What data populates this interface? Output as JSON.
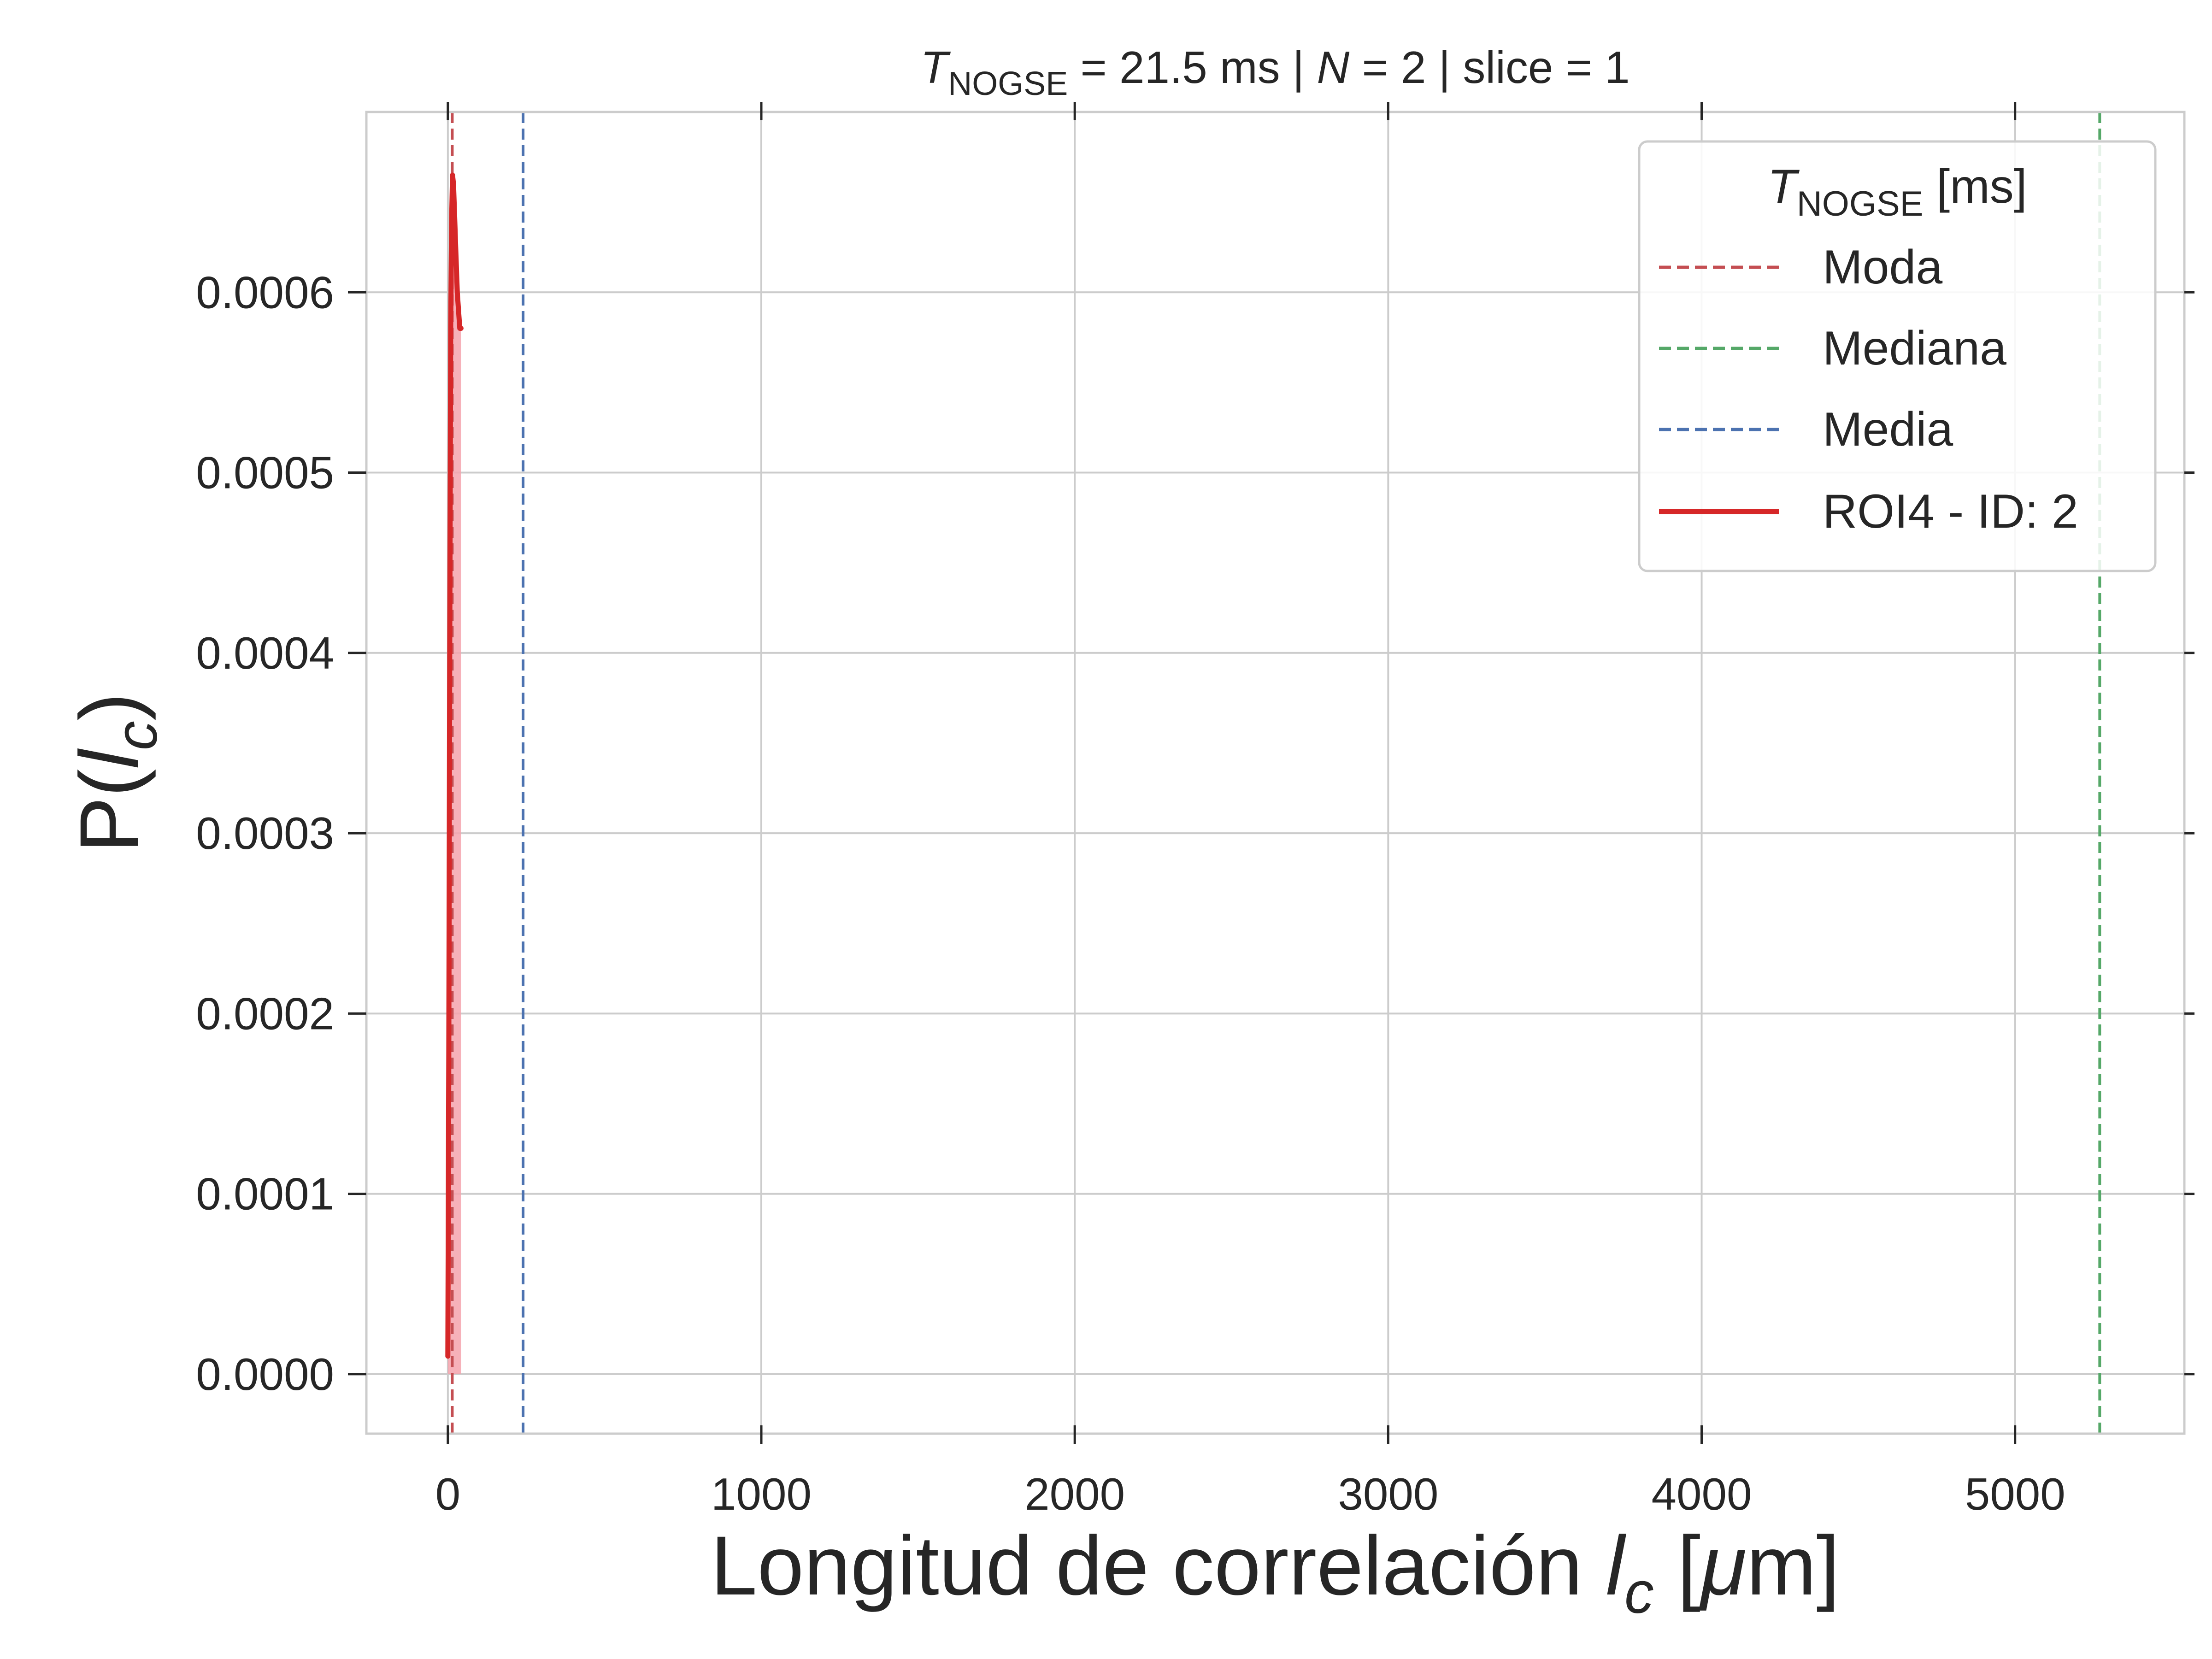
{
  "chart_data": {
    "type": "line",
    "title": {
      "symbol": "T",
      "subscript": "NOGSE",
      "rest": " = 21.5 ms | ",
      "n_symbol": "N",
      "n_rest": " = 2 | slice = 1"
    },
    "xlabel": {
      "prefix": "Longitud de correlación ",
      "symbol": "l",
      "subscript": "c",
      "unit_open": " [",
      "mu": "μ",
      "unit_close": "m]"
    },
    "ylabel": {
      "prefix": "P(",
      "symbol": "l",
      "subscript": "c",
      "suffix": ")"
    },
    "xlim": [
      -260,
      5540
    ],
    "ylim": [
      -3.3e-05,
      0.0007
    ],
    "x_ticks": [
      0,
      1000,
      2000,
      3000,
      4000,
      5000
    ],
    "x_tick_labels": [
      "0",
      "1000",
      "2000",
      "3000",
      "4000",
      "5000"
    ],
    "y_ticks": [
      0,
      0.0001,
      0.0002,
      0.0003,
      0.0004,
      0.0005,
      0.0006
    ],
    "y_tick_labels": [
      "0.0000",
      "0.0001",
      "0.0002",
      "0.0003",
      "0.0004",
      "0.0005",
      "0.0006"
    ],
    "grid": true,
    "legend": {
      "placement": "top-right",
      "title_symbol": "T",
      "title_subscript": "NOGSE",
      "title_rest": " [ms]",
      "entries": [
        {
          "label": "Moda",
          "style": "dashed",
          "color": "#c44e52"
        },
        {
          "label": "Mediana",
          "style": "dashed",
          "color": "#55a868"
        },
        {
          "label": "Media",
          "style": "dashed",
          "color": "#4c72b0"
        },
        {
          "label": "ROI4 - ID: 2",
          "style": "solid",
          "color": "#d62728"
        }
      ]
    },
    "vlines": [
      {
        "name": "Moda",
        "x": 14,
        "color": "#c44e52"
      },
      {
        "name": "Mediana",
        "x": 5270,
        "color": "#55a868"
      },
      {
        "name": "Media",
        "x": 240,
        "color": "#4c72b0"
      }
    ],
    "series": [
      {
        "name": "ROI4 - ID: 2",
        "color": "#d62728",
        "fill_color": "#f4a3ad",
        "x": [
          0,
          3,
          6,
          9,
          12,
          15,
          18,
          22,
          26,
          30,
          34,
          38,
          42
        ],
        "y": [
          1e-05,
          0.00018,
          0.0004,
          0.00058,
          0.00064,
          0.000665,
          0.00066,
          0.00064,
          0.00062,
          0.0006,
          0.00059,
          0.00058,
          0.00058
        ]
      }
    ]
  }
}
